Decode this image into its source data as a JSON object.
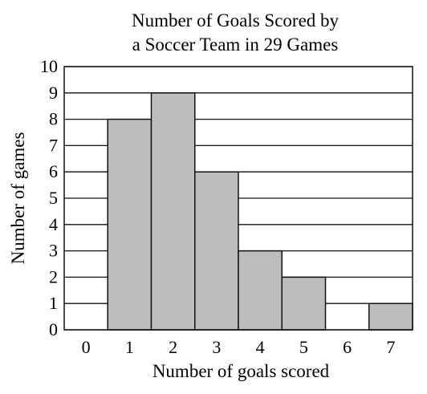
{
  "chart_data": {
    "type": "bar",
    "title_lines": [
      "Number of Goals Scored by",
      "a Soccer Team in 29 Games"
    ],
    "xlabel": "Number of goals scored",
    "ylabel": "Number of games",
    "categories": [
      "0",
      "1",
      "2",
      "3",
      "4",
      "5",
      "6",
      "7"
    ],
    "values": [
      0,
      8,
      9,
      6,
      3,
      2,
      0,
      1
    ],
    "ylim": [
      0,
      10
    ],
    "yticks": [
      "0",
      "1",
      "2",
      "3",
      "4",
      "5",
      "6",
      "7",
      "8",
      "9",
      "10"
    ],
    "grid": true,
    "bar_color": "#bdbdbd",
    "edge_color": "#111111"
  }
}
